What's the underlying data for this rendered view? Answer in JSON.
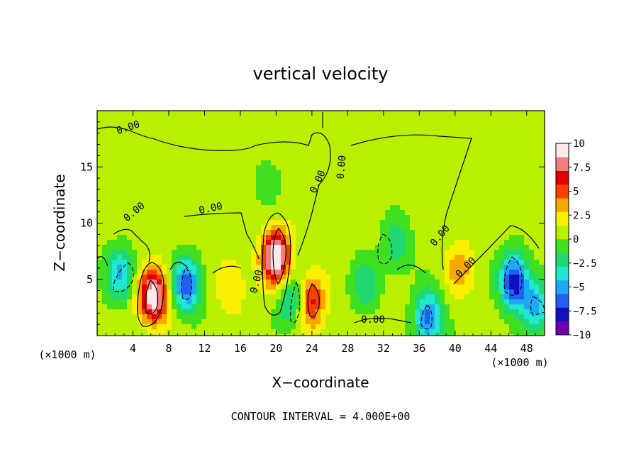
{
  "chart_data": {
    "type": "heatmap",
    "title": "vertical velocity",
    "xlabel": "X−coordinate",
    "ylabel": "Z−coordinate",
    "x_unit_left": "(×1000 m)",
    "x_unit_right": "(×1000 m)",
    "x_range": [
      0,
      50
    ],
    "y_range": [
      0,
      20
    ],
    "x_ticks": [
      4,
      8,
      12,
      16,
      20,
      24,
      28,
      32,
      36,
      40,
      44,
      48
    ],
    "x_tick_labels": [
      "4",
      "8",
      "12",
      "16",
      "20",
      "24",
      "28",
      "32",
      "36",
      "40",
      "44",
      "48"
    ],
    "y_ticks": [
      5,
      10,
      15
    ],
    "y_tick_labels": [
      "5",
      "10",
      "15"
    ],
    "colorbar": {
      "min": -10,
      "max": 10,
      "tick_values": [
        10,
        7.5,
        5,
        2.5,
        0,
        -2.5,
        -5,
        -7.5,
        -10
      ],
      "tick_labels": [
        "10",
        "7.5",
        "5",
        "2.5",
        "0",
        "−2.5",
        "−5",
        "−7.5",
        "−10"
      ],
      "colors": [
        "#7000b0",
        "#1010c0",
        "#2060f0",
        "#20a8f8",
        "#20e8d0",
        "#20d870",
        "#40e020",
        "#b8f000",
        "#f8f000",
        "#f8a800",
        "#f84000",
        "#e00000",
        "#f08080",
        "#ffe8e8"
      ]
    },
    "contour_label": "0.00",
    "contour_interval_text": "CONTOUR INTERVAL =  4.000E+00",
    "features": [
      {
        "x": 6.3,
        "z": 3.5,
        "w": 9.5
      },
      {
        "x": 20.0,
        "z": 7.0,
        "w": 10.0
      },
      {
        "x": 23.8,
        "z": 3.0,
        "w": 6.0
      },
      {
        "x": 40.5,
        "z": 6.0,
        "w": 3.0
      },
      {
        "x": 10.0,
        "z": 4.5,
        "w": -7.5
      },
      {
        "x": 2.5,
        "z": 5.5,
        "w": -5.0
      },
      {
        "x": 37.0,
        "z": 1.5,
        "w": -7.0
      },
      {
        "x": 46.6,
        "z": 4.8,
        "w": -9.0
      },
      {
        "x": 33.5,
        "z": 8.0,
        "w": -3.0
      },
      {
        "x": 30.0,
        "z": 4.5,
        "w": -3.0
      },
      {
        "x": 49.0,
        "z": 2.5,
        "w": -5.0
      },
      {
        "x": 21.8,
        "z": 3.0,
        "w": -4.5
      },
      {
        "x": 15.0,
        "z": 4.5,
        "w": 2.5
      },
      {
        "x": 19.0,
        "z": 14.0,
        "w": -1.5
      }
    ]
  }
}
